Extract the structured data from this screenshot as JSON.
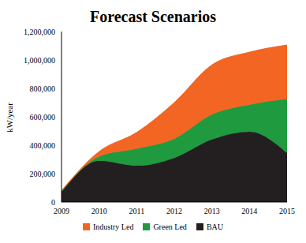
{
  "chart_data": {
    "type": "area",
    "title": "Forecast Scenarios",
    "y_label": "kW/year",
    "categories": [
      "2009",
      "2010",
      "2011",
      "2012",
      "2013",
      "2014",
      "2015"
    ],
    "series": [
      {
        "name": "BAU",
        "color": "#231f20",
        "values": [
          70000,
          290000,
          255000,
          310000,
          440000,
          495000,
          345000
        ]
      },
      {
        "name": "Green Led",
        "color": "#1f9a3e",
        "values": [
          5000,
          30000,
          120000,
          135000,
          175000,
          190000,
          380000
        ]
      },
      {
        "name": "Industry Led",
        "color": "#f26522",
        "values": [
          5000,
          35000,
          115000,
          255000,
          350000,
          370000,
          380000
        ]
      }
    ],
    "ylim": [
      0,
      1200000
    ],
    "yticks": [
      0,
      {
        "value": 200000,
        "label": "200,000"
      },
      {
        "value": 400000,
        "label": "400,000"
      },
      {
        "value": 600000,
        "label": "600,000"
      },
      {
        "value": 800000,
        "label": "800,000"
      },
      {
        "value": 1000000,
        "label": "1,000,000"
      },
      {
        "value": 1200000,
        "label": "1,200,000"
      }
    ],
    "stacked": true,
    "legend": "bottom",
    "grid": false
  }
}
